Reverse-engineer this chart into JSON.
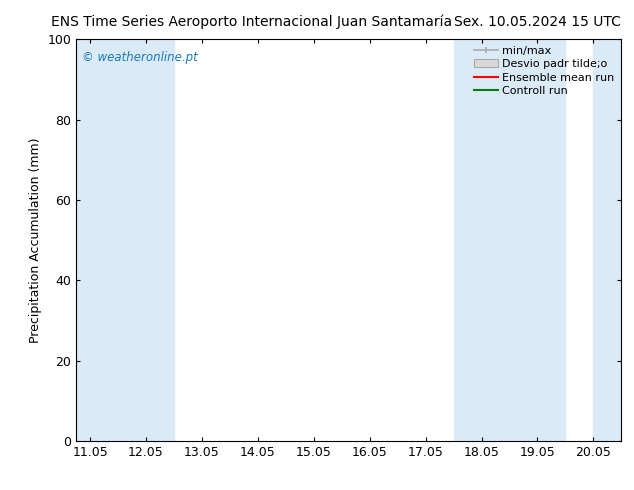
{
  "title_left": "ENS Time Series Aeroporto Internacional Juan Santamaría",
  "title_right": "Sex. 10.05.2024 15 UTC",
  "ylabel": "Precipitation Accumulation (mm)",
  "ylim": [
    0,
    100
  ],
  "yticks": [
    0,
    20,
    40,
    60,
    80,
    100
  ],
  "xlim_start": 10.8,
  "xlim_end": 20.55,
  "xtick_labels": [
    "11.05",
    "12.05",
    "13.05",
    "14.05",
    "15.05",
    "16.05",
    "17.05",
    "18.05",
    "19.05",
    "20.05"
  ],
  "xtick_positions": [
    11.05,
    12.05,
    13.05,
    14.05,
    15.05,
    16.05,
    17.05,
    18.05,
    19.05,
    20.05
  ],
  "shaded_regions": [
    {
      "xmin": 10.8,
      "xmax": 11.55
    },
    {
      "xmin": 11.55,
      "xmax": 12.05
    },
    {
      "xmin": 12.05,
      "xmax": 12.55
    },
    {
      "xmin": 17.55,
      "xmax": 18.55
    },
    {
      "xmin": 18.55,
      "xmax": 19.05
    },
    {
      "xmin": 19.05,
      "xmax": 19.55
    },
    {
      "xmin": 20.05,
      "xmax": 20.55
    }
  ],
  "shade_color": "#daeaf7",
  "watermark_text": "© weatheronline.pt",
  "watermark_color": "#1a7abf",
  "legend_items": [
    {
      "label": "min/max",
      "type": "errorbar",
      "color": "#aaaaaa"
    },
    {
      "label": "Desvio padr tilde;o",
      "type": "band",
      "color": "#cccccc"
    },
    {
      "label": "Ensemble mean run",
      "type": "line",
      "color": "red"
    },
    {
      "label": "Controll run",
      "type": "line",
      "color": "green"
    }
  ],
  "bg_color": "#ffffff",
  "title_fontsize": 10,
  "axis_label_fontsize": 9,
  "tick_fontsize": 9,
  "legend_fontsize": 8
}
